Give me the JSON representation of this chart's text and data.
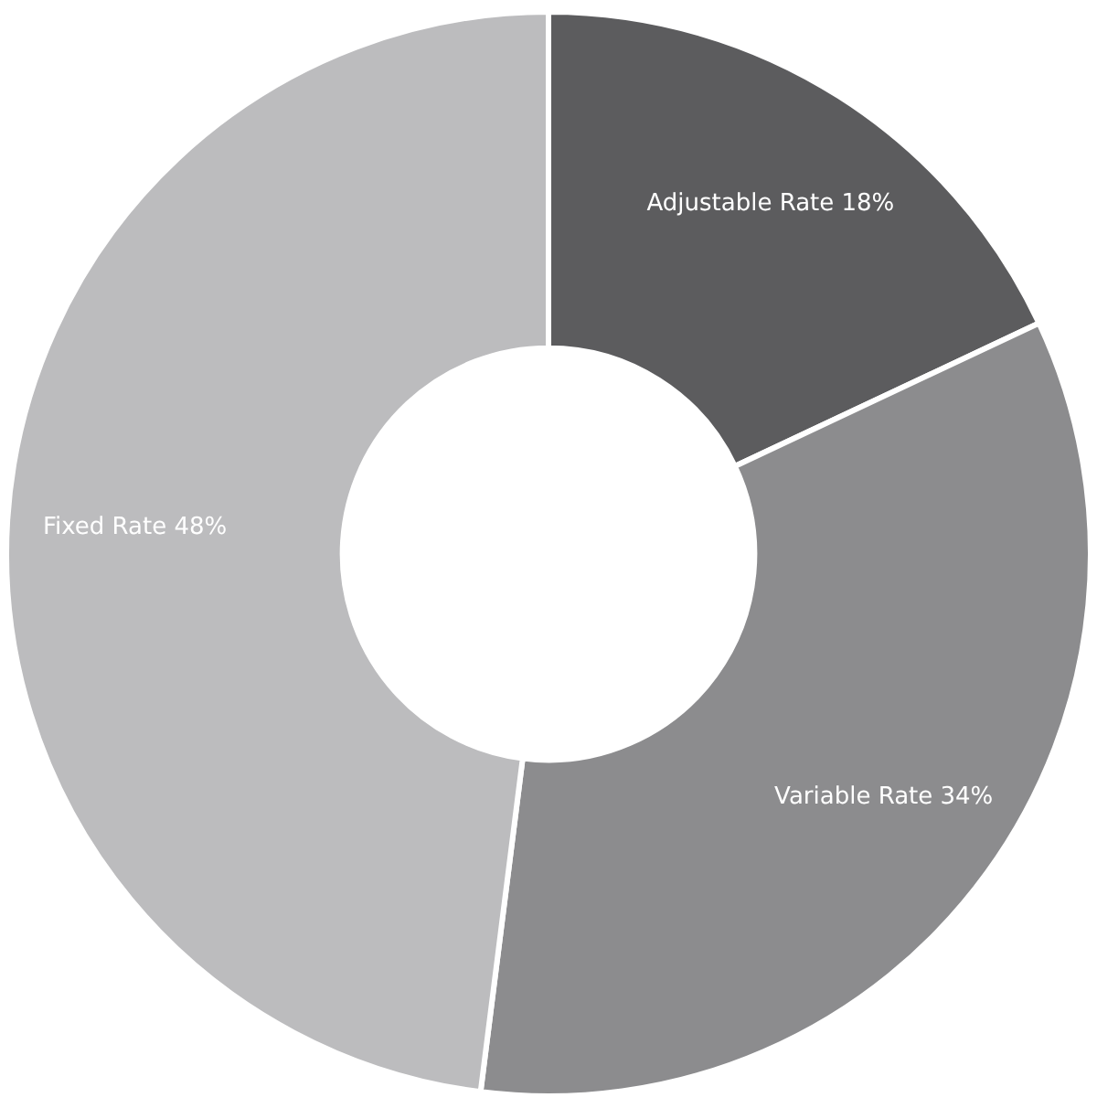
{
  "chart_data": {
    "type": "donut",
    "categories": [
      "Adjustable Rate",
      "Variable Rate",
      "Fixed Rate"
    ],
    "values": [
      18,
      34,
      48
    ],
    "colors": [
      "#5c5c5e",
      "#8c8c8e",
      "#bcbcbe"
    ],
    "value_labels": [
      "18%",
      "34%",
      "48%"
    ],
    "legend": false
  }
}
